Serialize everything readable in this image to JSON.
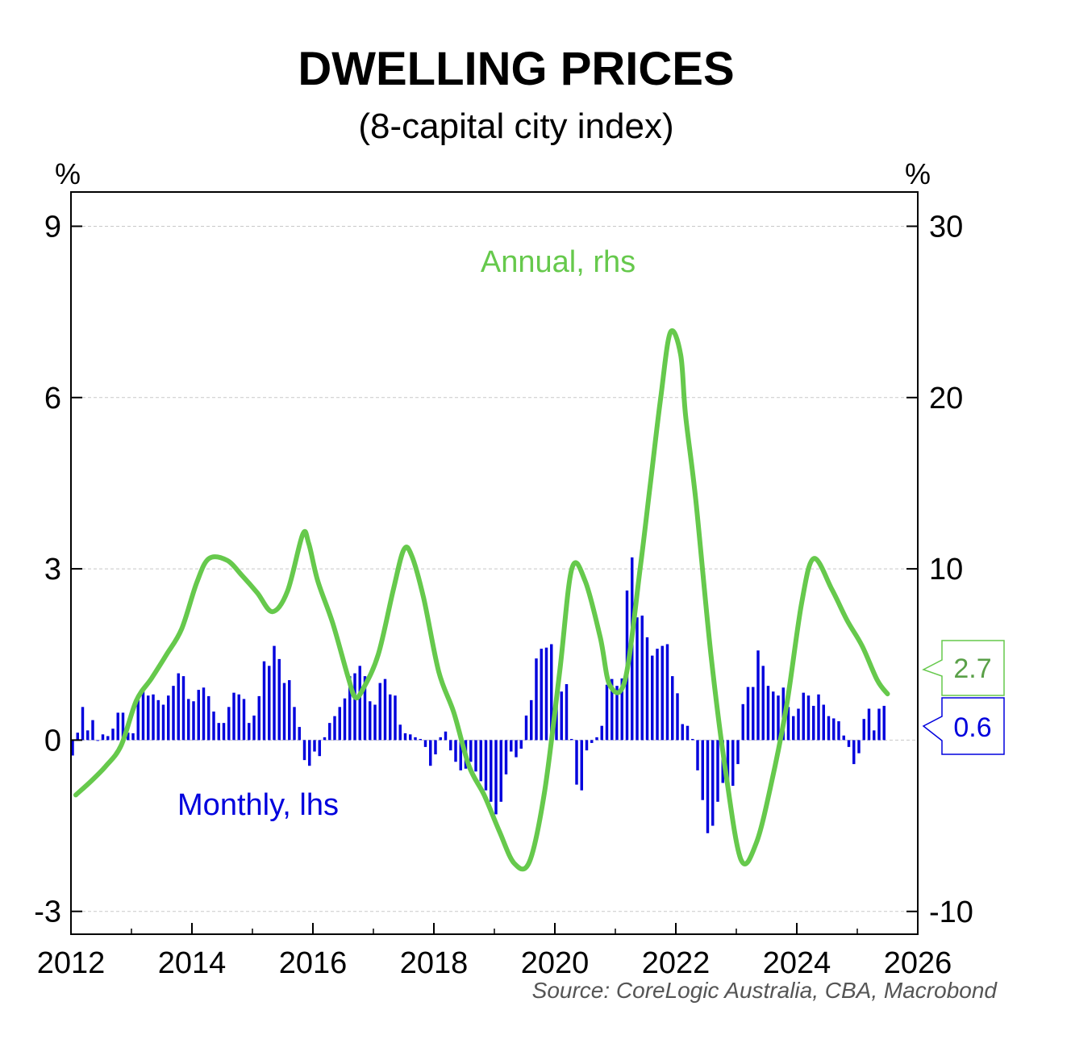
{
  "chart_data": {
    "type": "bar+line",
    "title": "DWELLING PRICES",
    "subtitle": "(8-capital city index)",
    "source": "Source: CoreLogic Australia, CBA, Macrobond",
    "left_axis": {
      "unit": "%",
      "min": -3.4,
      "max": 9.6,
      "ticks": [
        -3,
        0,
        3,
        6,
        9
      ]
    },
    "right_axis": {
      "unit": "%",
      "min": -11.33,
      "max": 32,
      "ticks": [
        -10,
        10,
        20,
        30
      ]
    },
    "right_tick_labels": [
      "-10",
      "10",
      "20",
      "30"
    ],
    "x_axis": {
      "min": 2012,
      "max": 2026,
      "ticks": [
        2012,
        2014,
        2016,
        2018,
        2020,
        2022,
        2024,
        2026
      ]
    },
    "grid": true,
    "monthly_series": {
      "name": "Monthly, lhs",
      "axis": "left",
      "color": "#0000dd",
      "start": "2012-01",
      "values": [
        -0.27,
        0.13,
        0.58,
        0.17,
        0.35,
        0.0,
        0.1,
        0.07,
        0.2,
        0.48,
        0.48,
        0.13,
        0.12,
        0.73,
        0.92,
        0.78,
        0.8,
        0.7,
        0.62,
        0.78,
        0.95,
        1.17,
        1.12,
        0.72,
        0.68,
        0.88,
        0.92,
        0.77,
        0.5,
        0.3,
        0.3,
        0.58,
        0.83,
        0.8,
        0.72,
        0.3,
        0.43,
        0.77,
        1.38,
        1.3,
        1.65,
        1.42,
        1.0,
        1.05,
        0.58,
        0.23,
        -0.35,
        -0.45,
        -0.2,
        -0.28,
        0.05,
        0.3,
        0.42,
        0.58,
        0.73,
        1.12,
        1.17,
        1.3,
        1.12,
        0.68,
        0.62,
        1.0,
        1.07,
        0.8,
        0.78,
        0.27,
        0.12,
        0.1,
        0.05,
        0.02,
        -0.12,
        -0.45,
        -0.25,
        0.05,
        0.15,
        -0.18,
        -0.38,
        -0.53,
        -0.5,
        -0.38,
        -0.55,
        -0.72,
        -0.88,
        -1.08,
        -1.3,
        -1.08,
        -0.6,
        -0.2,
        -0.3,
        -0.15,
        0.43,
        0.7,
        1.43,
        1.6,
        1.62,
        1.68,
        0.83,
        0.85,
        0.98,
        0.02,
        -0.78,
        -0.88,
        -0.18,
        -0.05,
        0.05,
        0.25,
        0.97,
        1.07,
        0.95,
        1.08,
        2.62,
        3.2,
        2.15,
        2.18,
        1.8,
        1.48,
        1.6,
        1.65,
        1.68,
        1.12,
        0.82,
        0.28,
        0.25,
        0.02,
        -0.53,
        -1.05,
        -1.63,
        -1.5,
        -1.08,
        -0.75,
        -0.72,
        -0.8,
        -0.42,
        0.63,
        0.93,
        0.93,
        1.57,
        1.3,
        0.95,
        0.85,
        0.78,
        0.92,
        0.58,
        0.42,
        0.55,
        0.83,
        0.78,
        0.6,
        0.8,
        0.62,
        0.42,
        0.38,
        0.33,
        0.08,
        -0.12,
        -0.42,
        -0.23,
        0.37,
        0.55,
        0.17,
        0.55,
        0.6
      ]
    },
    "annual_series": {
      "name": "Annual, rhs",
      "axis": "right",
      "color": "#66c94c",
      "points": [
        [
          2012.0,
          -3.2
        ],
        [
          2012.25,
          -2.4
        ],
        [
          2012.5,
          -1.5
        ],
        [
          2012.75,
          -0.3
        ],
        [
          2013.0,
          2.3
        ],
        [
          2013.25,
          3.6
        ],
        [
          2013.5,
          5.0
        ],
        [
          2013.75,
          6.5
        ],
        [
          2014.0,
          9.2
        ],
        [
          2014.2,
          10.6
        ],
        [
          2014.5,
          10.5
        ],
        [
          2014.75,
          9.6
        ],
        [
          2015.0,
          8.6
        ],
        [
          2015.25,
          7.5
        ],
        [
          2015.5,
          8.7
        ],
        [
          2015.75,
          12.0
        ],
        [
          2015.85,
          11.5
        ],
        [
          2016.0,
          9.3
        ],
        [
          2016.25,
          6.8
        ],
        [
          2016.5,
          3.7
        ],
        [
          2016.62,
          2.5
        ],
        [
          2016.75,
          3.0
        ],
        [
          2017.0,
          5.0
        ],
        [
          2017.25,
          8.8
        ],
        [
          2017.42,
          11.1
        ],
        [
          2017.55,
          10.8
        ],
        [
          2017.75,
          8.3
        ],
        [
          2018.0,
          4.0
        ],
        [
          2018.25,
          1.6
        ],
        [
          2018.5,
          -1.5
        ],
        [
          2018.75,
          -3.2
        ],
        [
          2019.0,
          -5.3
        ],
        [
          2019.25,
          -7.2
        ],
        [
          2019.5,
          -7.1
        ],
        [
          2019.75,
          -3.0
        ],
        [
          2020.0,
          4.0
        ],
        [
          2020.2,
          10.0
        ],
        [
          2020.42,
          9.3
        ],
        [
          2020.67,
          6.0
        ],
        [
          2020.83,
          3.2
        ],
        [
          2021.08,
          3.5
        ],
        [
          2021.33,
          10.0
        ],
        [
          2021.5,
          15.0
        ],
        [
          2021.67,
          20.0
        ],
        [
          2021.83,
          23.8
        ],
        [
          2022.0,
          22.5
        ],
        [
          2022.08,
          19.0
        ],
        [
          2022.25,
          14.0
        ],
        [
          2022.5,
          5.0
        ],
        [
          2022.75,
          -2.0
        ],
        [
          2023.0,
          -7.0
        ],
        [
          2023.25,
          -6.0
        ],
        [
          2023.5,
          -2.5
        ],
        [
          2023.75,
          2.0
        ],
        [
          2024.0,
          8.0
        ],
        [
          2024.2,
          10.6
        ],
        [
          2024.5,
          8.8
        ],
        [
          2024.75,
          7.0
        ],
        [
          2025.0,
          5.5
        ],
        [
          2025.25,
          3.5
        ],
        [
          2025.42,
          2.7
        ]
      ]
    },
    "labels": {
      "annual": "Annual, rhs",
      "monthly": "Monthly, lhs",
      "annual_latest": "2.7",
      "monthly_latest": "0.6"
    }
  }
}
